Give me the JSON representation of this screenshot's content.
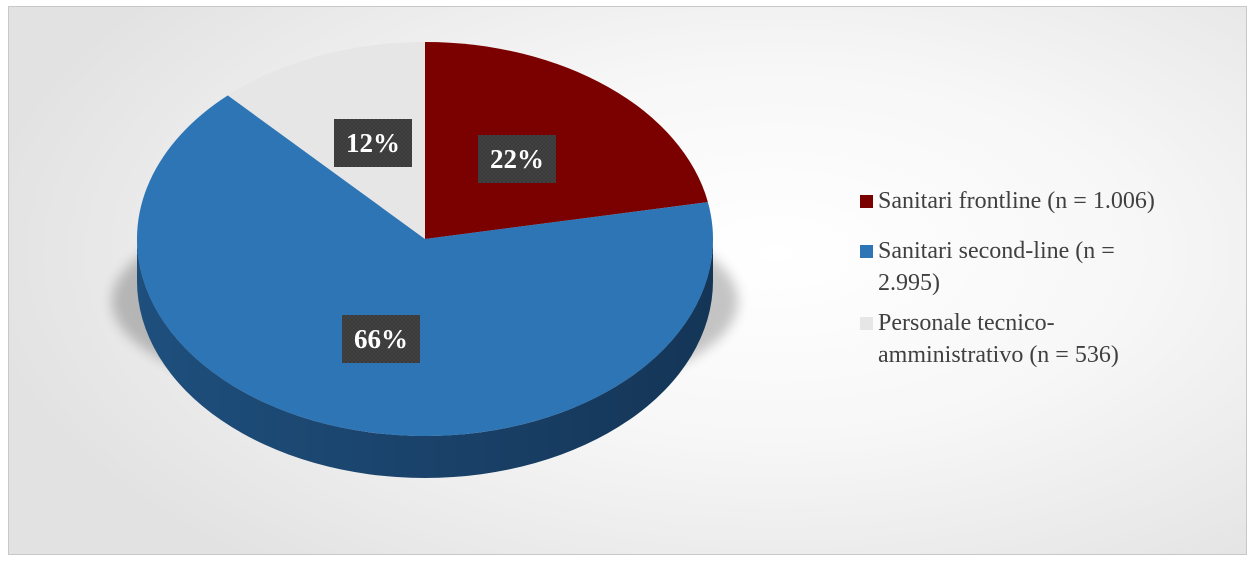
{
  "chart_data": {
    "type": "pie",
    "title": "",
    "slices": [
      {
        "label": "Sanitari frontline (n = 1.006)",
        "value": 22,
        "display": "22%",
        "color": "#7b0000"
      },
      {
        "label": "Sanitari second-line (n = 2.995)",
        "value": 66,
        "display": "66%",
        "color": "#2e75b6"
      },
      {
        "label": "Personale tecnico-amministrativo (n = 536)",
        "value": 12,
        "display": "12%",
        "color": "#e6e6e6"
      }
    ],
    "legend_position": "right",
    "style": "3d"
  },
  "legend": {
    "items": [
      {
        "label_lines": [
          "Sanitari frontline (n = 1.006)"
        ],
        "color": "#7b0000"
      },
      {
        "label_lines": [
          "Sanitari second-line (n =",
          "2.995)"
        ],
        "color": "#2e75b6"
      },
      {
        "label_lines": [
          "Personale tecnico-",
          "amministrativo (n = 536)"
        ],
        "color": "#e6e6e6"
      }
    ]
  }
}
